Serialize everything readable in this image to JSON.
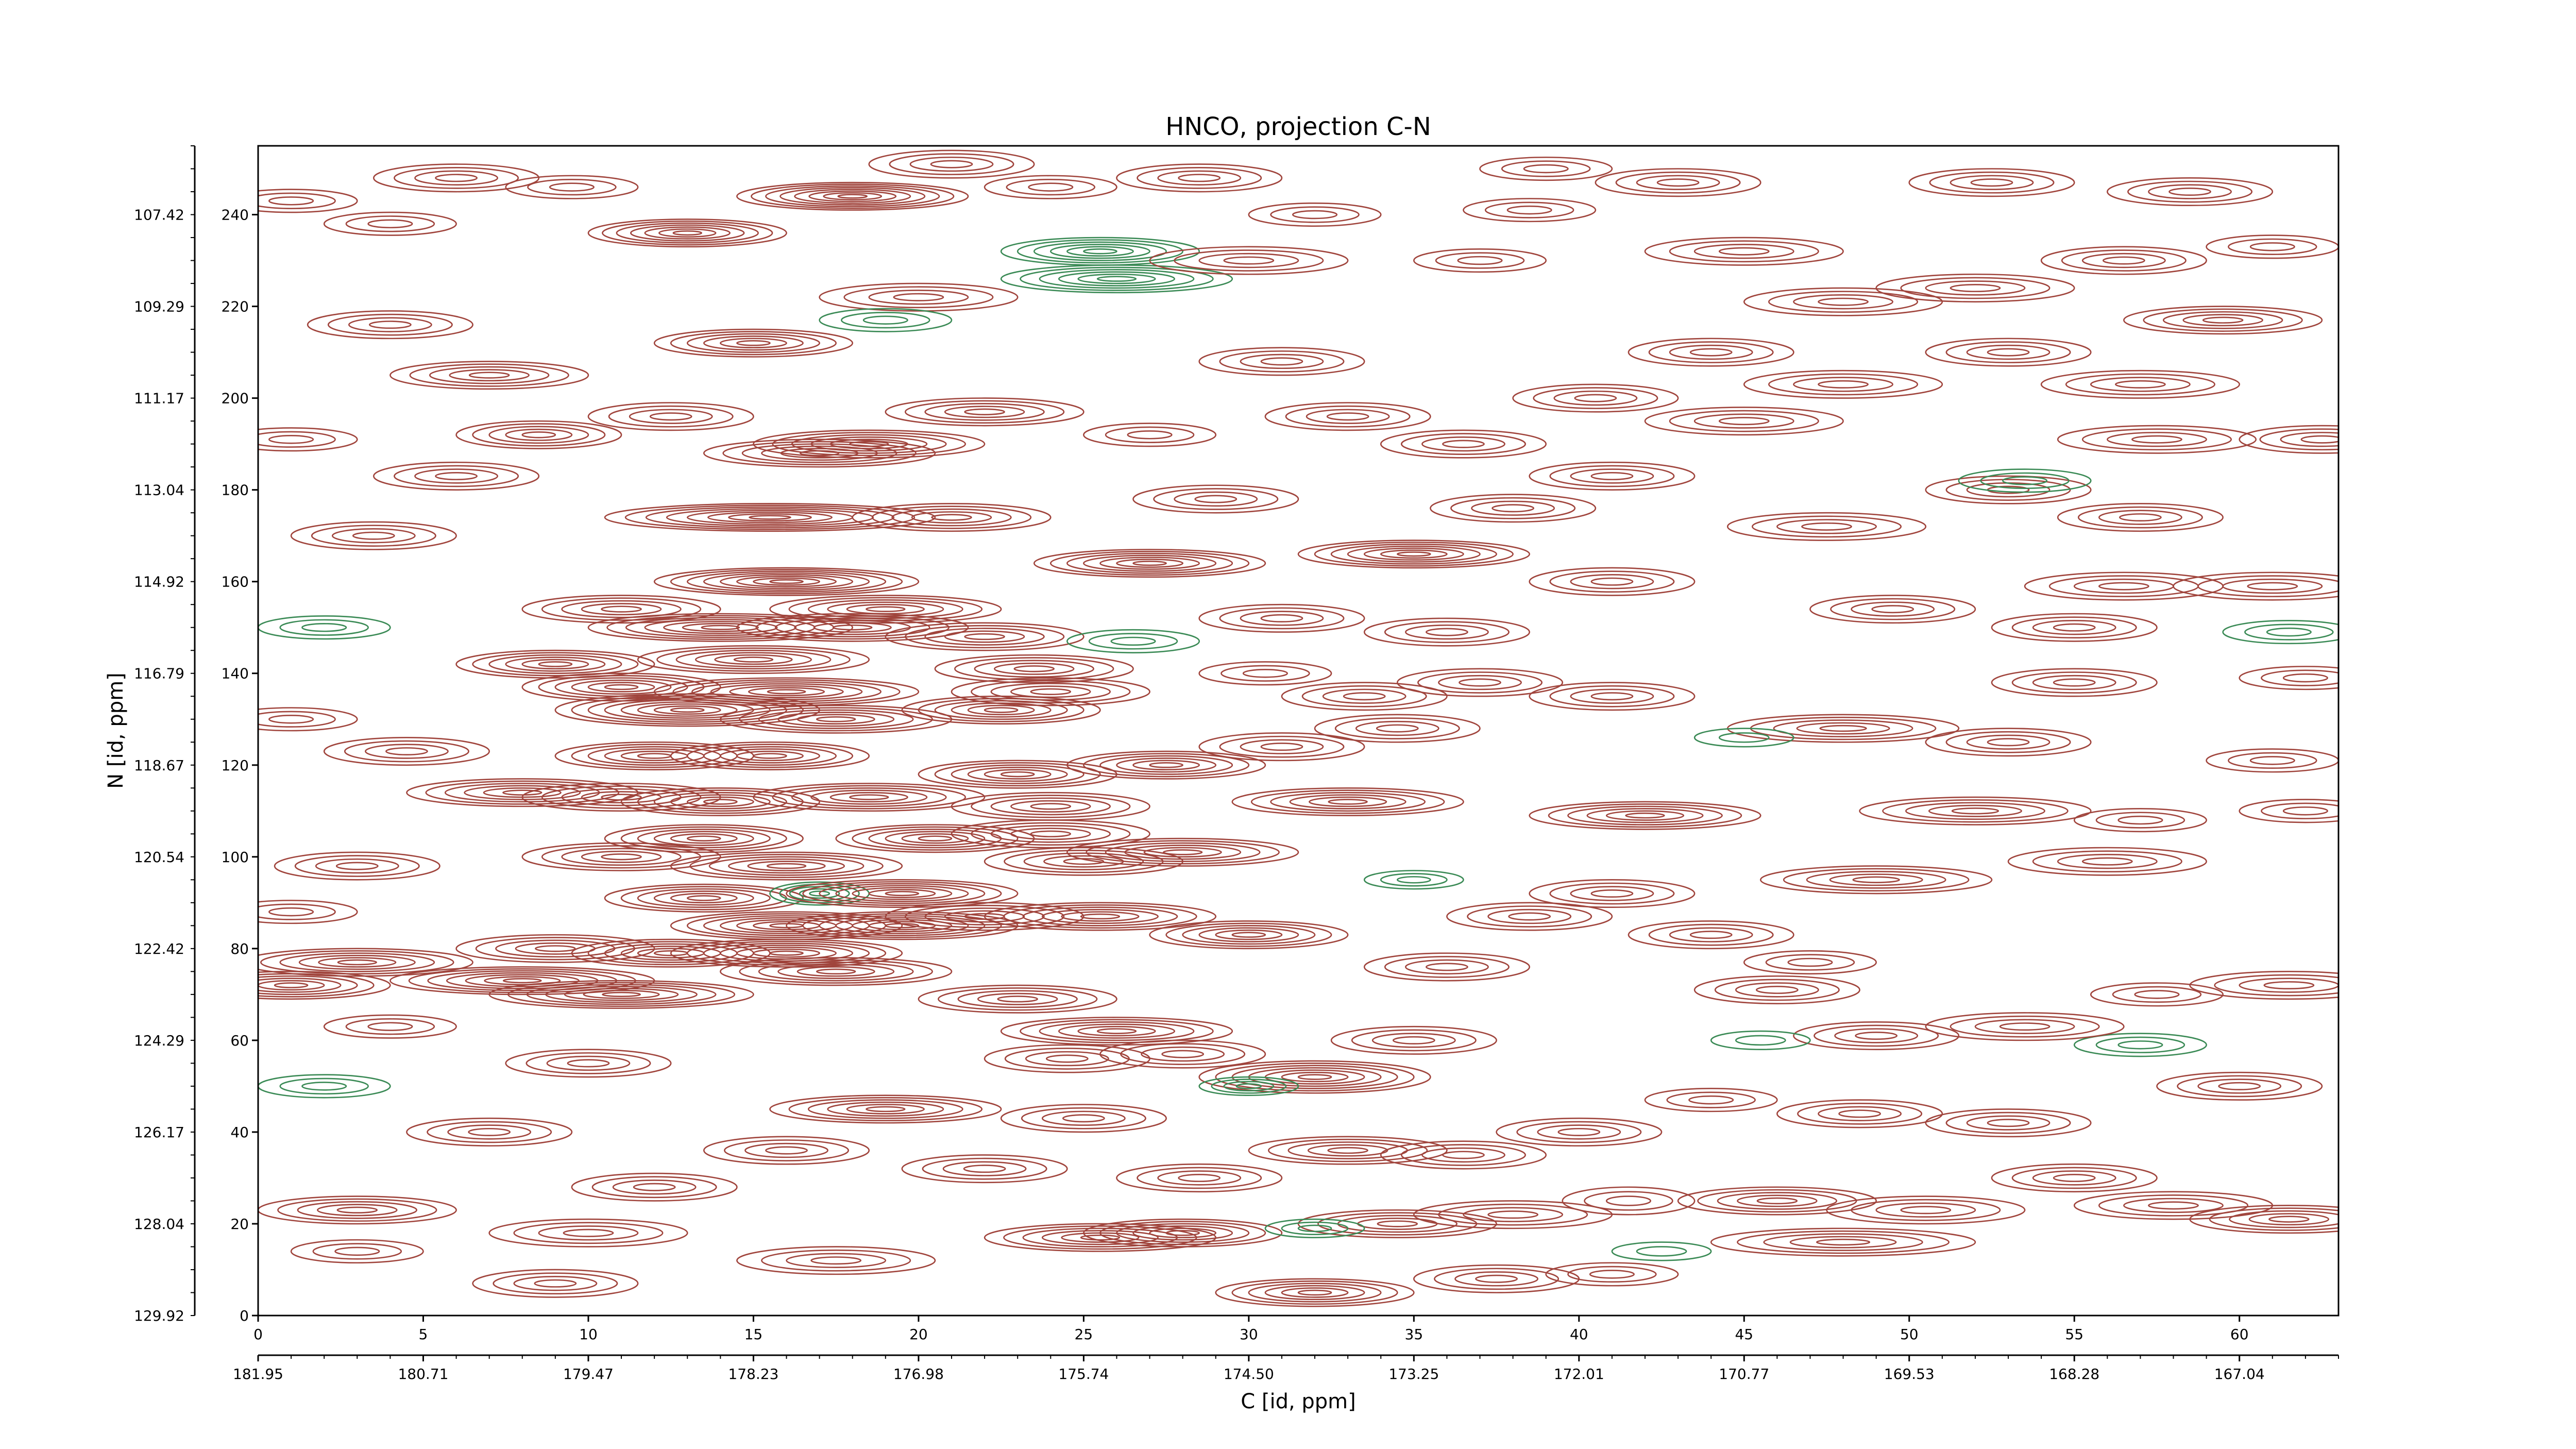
{
  "chart_data": {
    "type": "contour",
    "title": "HNCO, projection C-N",
    "xlabel": "C [id, ppm]",
    "ylabel": "N [id, ppm]",
    "x_index_ticks": [
      "0",
      "5",
      "10",
      "15",
      "20",
      "25",
      "30",
      "35",
      "40",
      "45",
      "50",
      "55",
      "60"
    ],
    "x_ppm_ticks": [
      "181.95",
      "180.71",
      "179.47",
      "178.23",
      "176.98",
      "175.74",
      "174.50",
      "173.25",
      "172.01",
      "170.77",
      "169.53",
      "168.28",
      "167.04"
    ],
    "y_index_ticks": [
      "0",
      "20",
      "40",
      "60",
      "80",
      "100",
      "120",
      "140",
      "160",
      "180",
      "200",
      "220",
      "240"
    ],
    "y_ppm_ticks": [
      "129.92",
      "128.04",
      "126.17",
      "124.29",
      "122.42",
      "120.54",
      "118.67",
      "116.79",
      "114.92",
      "113.04",
      "111.17",
      "109.29",
      "107.42"
    ],
    "x_index_range": [
      0,
      63
    ],
    "y_index_range": [
      0,
      255
    ],
    "colors": {
      "positive": "#a0443c",
      "negative": "#3a8a55"
    },
    "peaks": [
      [
        18,
        244,
        3.5,
        3,
        8,
        1
      ],
      [
        13,
        236,
        3,
        3,
        7,
        1
      ],
      [
        25.5,
        232,
        3,
        3,
        6,
        -1
      ],
      [
        26,
        226,
        3.5,
        3,
        6,
        -1
      ],
      [
        15,
        212,
        3,
        3,
        6,
        1
      ],
      [
        7,
        205,
        3,
        3,
        5,
        1
      ],
      [
        12.5,
        196,
        2.5,
        3,
        4,
        1
      ],
      [
        8.5,
        192,
        2.5,
        3,
        5,
        1
      ],
      [
        17,
        188,
        3.5,
        3,
        6,
        1
      ],
      [
        18.5,
        190,
        3.5,
        3,
        6,
        1
      ],
      [
        22,
        197,
        3,
        3,
        5,
        1
      ],
      [
        15.5,
        174,
        5,
        3,
        8,
        1
      ],
      [
        21,
        174,
        3,
        3,
        5,
        1
      ],
      [
        27,
        164,
        3.5,
        3,
        7,
        1
      ],
      [
        35,
        166,
        3.5,
        3,
        7,
        1
      ],
      [
        16,
        160,
        4,
        3,
        8,
        1
      ],
      [
        11,
        154,
        3,
        3,
        5,
        1
      ],
      [
        19,
        154,
        3.5,
        3,
        6,
        1
      ],
      [
        14,
        150,
        4,
        3,
        7,
        1
      ],
      [
        18,
        150,
        3.5,
        3,
        6,
        1
      ],
      [
        22,
        148,
        3,
        3,
        5,
        1
      ],
      [
        9,
        142,
        3,
        3,
        6,
        1
      ],
      [
        15,
        143,
        3.5,
        3,
        6,
        1
      ],
      [
        23.5,
        141,
        3,
        3,
        5,
        1
      ],
      [
        11,
        137,
        3,
        3,
        6,
        1
      ],
      [
        16,
        136,
        4,
        3,
        7,
        1
      ],
      [
        13,
        132,
        4,
        3.5,
        8,
        1
      ],
      [
        17.5,
        130,
        3.5,
        3,
        6,
        1
      ],
      [
        22.5,
        132,
        3,
        3,
        6,
        1
      ],
      [
        24,
        136,
        3,
        3,
        5,
        1
      ],
      [
        12,
        122,
        3,
        3,
        6,
        1
      ],
      [
        15.5,
        122,
        3,
        3,
        6,
        1
      ],
      [
        8,
        114,
        3.5,
        3,
        6,
        1
      ],
      [
        11,
        113,
        3,
        3,
        5,
        1
      ],
      [
        14,
        112,
        3,
        3,
        6,
        1
      ],
      [
        18.5,
        113,
        3.5,
        3,
        6,
        1
      ],
      [
        23,
        118,
        3,
        3,
        6,
        1
      ],
      [
        27.5,
        120,
        3,
        3,
        6,
        1
      ],
      [
        24,
        111,
        3,
        3,
        5,
        1
      ],
      [
        33,
        112,
        3.5,
        3,
        6,
        1
      ],
      [
        42,
        109,
        3.5,
        3,
        6,
        1
      ],
      [
        11,
        100,
        3,
        3,
        5,
        1
      ],
      [
        13.5,
        104,
        3,
        3,
        6,
        1
      ],
      [
        20.5,
        104,
        3,
        3,
        6,
        1
      ],
      [
        24,
        105,
        3,
        3,
        5,
        1
      ],
      [
        28,
        101,
        3.5,
        3,
        6,
        1
      ],
      [
        16,
        98,
        3.5,
        3,
        6,
        1
      ],
      [
        25,
        99,
        3,
        3,
        5,
        1
      ],
      [
        13.5,
        91,
        3,
        3,
        6,
        1
      ],
      [
        17,
        92,
        1.5,
        2.5,
        5,
        -1
      ],
      [
        19.5,
        92,
        3.5,
        3,
        7,
        1
      ],
      [
        19.5,
        85,
        3.5,
        3,
        7,
        1
      ],
      [
        16,
        85,
        3.5,
        3,
        7,
        1
      ],
      [
        22,
        87,
        3,
        3,
        5,
        1
      ],
      [
        25.5,
        87,
        3.5,
        3,
        6,
        1
      ],
      [
        30,
        83,
        3,
        3,
        6,
        1
      ],
      [
        9,
        80,
        3,
        3,
        5,
        1
      ],
      [
        12.5,
        79,
        3,
        3,
        6,
        1
      ],
      [
        16,
        79,
        3.5,
        3,
        7,
        1
      ],
      [
        3,
        77,
        3.5,
        3,
        6,
        1
      ],
      [
        1,
        72,
        3,
        3,
        6,
        1
      ],
      [
        8,
        73,
        4,
        3,
        7,
        1
      ],
      [
        11,
        70,
        4,
        3,
        7,
        1
      ],
      [
        17.5,
        75,
        3.5,
        3,
        6,
        1
      ],
      [
        23,
        69,
        3,
        3,
        5,
        1
      ],
      [
        26,
        62,
        3.5,
        3,
        6,
        1
      ],
      [
        32,
        52,
        3.5,
        3.5,
        7,
        1
      ],
      [
        30,
        50,
        1.5,
        2,
        4,
        -1
      ],
      [
        19,
        45,
        3.5,
        3,
        6,
        1
      ],
      [
        25.5,
        17,
        3.5,
        3,
        6,
        1
      ],
      [
        28,
        18,
        3,
        3,
        6,
        1
      ],
      [
        32,
        5,
        3,
        3,
        6,
        1
      ],
      [
        3,
        23,
        3,
        3,
        5,
        1
      ],
      [
        12,
        28,
        2.5,
        3,
        4,
        1
      ],
      [
        3,
        14,
        2,
        2.5,
        3,
        1
      ],
      [
        41.5,
        25,
        2,
        3,
        3,
        1
      ],
      [
        38,
        22,
        3,
        3,
        4,
        1
      ],
      [
        48,
        16,
        4,
        3,
        5,
        1
      ],
      [
        46,
        25,
        3,
        3,
        5,
        1
      ],
      [
        50.5,
        23,
        3,
        3,
        4,
        1
      ],
      [
        58,
        24,
        3,
        3,
        4,
        1
      ],
      [
        61.5,
        21,
        3,
        3,
        5,
        1
      ],
      [
        55,
        30,
        2.5,
        3,
        4,
        1
      ],
      [
        60,
        50,
        2.5,
        3,
        4,
        1
      ],
      [
        53,
        42,
        2.5,
        3,
        4,
        1
      ],
      [
        57,
        59,
        2,
        2.5,
        3,
        -1
      ],
      [
        53.5,
        63,
        3,
        3,
        4,
        1
      ],
      [
        61.5,
        72,
        3,
        3,
        4,
        1
      ],
      [
        57.5,
        70,
        2,
        2.5,
        3,
        1
      ],
      [
        47,
        77,
        2,
        2.5,
        3,
        1
      ],
      [
        49,
        95,
        3.5,
        3,
        5,
        1
      ],
      [
        41,
        92,
        2.5,
        3,
        4,
        1
      ],
      [
        56,
        99,
        3,
        3,
        4,
        1
      ],
      [
        57,
        108,
        2,
        2.5,
        3,
        1
      ],
      [
        52,
        110,
        3.5,
        3,
        5,
        1
      ],
      [
        62,
        110,
        2,
        2.5,
        3,
        1
      ],
      [
        48,
        128,
        3.5,
        3,
        5,
        1
      ],
      [
        53,
        125,
        2.5,
        3,
        4,
        1
      ],
      [
        61,
        121,
        2,
        2.5,
        3,
        1
      ],
      [
        45,
        126,
        1.5,
        2,
        2,
        -1
      ],
      [
        41,
        135,
        2.5,
        3,
        4,
        1
      ],
      [
        55,
        138,
        2.5,
        3,
        4,
        1
      ],
      [
        62,
        139,
        2,
        2.5,
        3,
        1
      ],
      [
        61.5,
        149,
        2,
        2.5,
        3,
        -1
      ],
      [
        55,
        150,
        2.5,
        3,
        4,
        1
      ],
      [
        49.5,
        154,
        2.5,
        3,
        4,
        1
      ],
      [
        56.5,
        159,
        3,
        3,
        4,
        1
      ],
      [
        61,
        159,
        3,
        3,
        4,
        1
      ],
      [
        47.5,
        172,
        3,
        3,
        4,
        1
      ],
      [
        57,
        174,
        2.5,
        3,
        4,
        1
      ],
      [
        53,
        180,
        2.5,
        3,
        4,
        1
      ],
      [
        53.5,
        182,
        2,
        2.5,
        3,
        -1
      ],
      [
        62.5,
        191,
        2.5,
        3,
        4,
        1
      ],
      [
        57.5,
        191,
        3,
        3,
        4,
        1
      ],
      [
        45,
        195,
        3,
        3,
        4,
        1
      ],
      [
        40.5,
        200,
        2.5,
        3,
        4,
        1
      ],
      [
        48,
        203,
        3,
        3,
        4,
        1
      ],
      [
        57,
        203,
        3,
        3,
        4,
        1
      ],
      [
        53,
        210,
        2.5,
        3,
        4,
        1
      ],
      [
        59.5,
        217,
        3,
        3,
        5,
        1
      ],
      [
        52,
        224,
        3,
        3,
        4,
        1
      ],
      [
        56.5,
        230,
        2.5,
        3,
        4,
        1
      ],
      [
        61,
        233,
        2,
        2.5,
        3,
        1
      ],
      [
        52.5,
        247,
        2.5,
        3,
        4,
        1
      ],
      [
        58.5,
        245,
        2.5,
        3,
        4,
        1
      ],
      [
        43,
        247,
        2.5,
        3,
        4,
        1
      ],
      [
        39,
        250,
        2,
        2.5,
        3,
        1
      ],
      [
        38.5,
        241,
        2,
        2.5,
        3,
        1
      ],
      [
        45,
        232,
        3,
        3,
        4,
        1
      ],
      [
        48,
        221,
        3,
        3,
        4,
        1
      ],
      [
        44,
        210,
        2.5,
        3,
        4,
        1
      ],
      [
        36.5,
        190,
        2.5,
        3,
        4,
        1
      ],
      [
        41,
        183,
        2.5,
        3,
        4,
        1
      ],
      [
        38,
        176,
        2.5,
        3,
        4,
        1
      ],
      [
        41,
        160,
        2.5,
        3,
        4,
        1
      ],
      [
        36,
        149,
        2.5,
        3,
        4,
        1
      ],
      [
        37,
        138,
        2.5,
        3,
        4,
        1
      ],
      [
        34.5,
        128,
        2.5,
        3,
        4,
        1
      ],
      [
        36,
        76,
        2.5,
        3,
        4,
        1
      ],
      [
        38.5,
        87,
        2.5,
        3,
        4,
        1
      ],
      [
        35,
        60,
        2.5,
        3,
        4,
        1
      ],
      [
        36.5,
        35,
        2.5,
        3,
        4,
        1
      ],
      [
        34.5,
        20,
        3,
        3,
        5,
        1
      ],
      [
        32,
        19,
        1.5,
        2,
        3,
        -1
      ],
      [
        37.5,
        8,
        2.5,
        3,
        4,
        1
      ],
      [
        41,
        9,
        2,
        2.5,
        3,
        1
      ],
      [
        42.5,
        14,
        1.5,
        2,
        2,
        -1
      ],
      [
        10,
        18,
        3,
        3,
        4,
        1
      ],
      [
        9,
        7,
        2.5,
        3,
        4,
        1
      ],
      [
        17.5,
        12,
        3,
        3,
        4,
        1
      ],
      [
        22,
        32,
        2.5,
        3,
        4,
        1
      ],
      [
        16,
        36,
        2.5,
        3,
        4,
        1
      ],
      [
        7,
        40,
        2.5,
        3,
        4,
        1
      ],
      [
        2,
        50,
        2,
        2.5,
        3,
        -1
      ],
      [
        10,
        55,
        2.5,
        3,
        4,
        1
      ],
      [
        4,
        63,
        2,
        2.5,
        3,
        1
      ],
      [
        3,
        98,
        2.5,
        3,
        4,
        1
      ],
      [
        1,
        88,
        2,
        2.5,
        3,
        1
      ],
      [
        4.5,
        123,
        2.5,
        3,
        4,
        1
      ],
      [
        1,
        130,
        2,
        2.5,
        3,
        1
      ],
      [
        2,
        150,
        2,
        2.5,
        3,
        -1
      ],
      [
        3.5,
        170,
        2.5,
        3,
        4,
        1
      ],
      [
        6,
        183,
        2.5,
        3,
        4,
        1
      ],
      [
        1,
        191,
        2,
        2.5,
        3,
        1
      ],
      [
        4,
        216,
        2.5,
        3,
        4,
        1
      ],
      [
        1,
        243,
        2,
        2.5,
        3,
        1
      ],
      [
        4,
        238,
        2,
        2.5,
        3,
        1
      ],
      [
        6,
        248,
        2.5,
        3,
        4,
        1
      ],
      [
        9.5,
        246,
        2,
        2.5,
        3,
        1
      ],
      [
        21,
        251,
        2.5,
        3,
        4,
        1
      ],
      [
        24,
        246,
        2,
        2.5,
        3,
        1
      ],
      [
        28.5,
        248,
        2.5,
        3,
        4,
        1
      ],
      [
        32,
        240,
        2,
        2.5,
        3,
        1
      ],
      [
        37,
        230,
        2,
        2.5,
        3,
        1
      ],
      [
        30,
        230,
        3,
        3,
        4,
        1
      ],
      [
        20,
        222,
        3,
        3,
        4,
        1
      ],
      [
        19,
        217,
        2,
        2.5,
        3,
        -1
      ],
      [
        31,
        208,
        2.5,
        3,
        4,
        1
      ],
      [
        27,
        192,
        2,
        2.5,
        3,
        1
      ],
      [
        33,
        196,
        2.5,
        3,
        4,
        1
      ],
      [
        29,
        178,
        2.5,
        3,
        4,
        1
      ],
      [
        31,
        152,
        2.5,
        3,
        4,
        1
      ],
      [
        26.5,
        147,
        2,
        2.5,
        3,
        -1
      ],
      [
        30.5,
        140,
        2,
        2.5,
        3,
        1
      ],
      [
        33.5,
        135,
        2.5,
        3,
        4,
        1
      ],
      [
        31,
        124,
        2.5,
        3,
        4,
        1
      ],
      [
        35,
        95,
        1.5,
        2,
        3,
        -1
      ],
      [
        44,
        83,
        2.5,
        3,
        4,
        1
      ],
      [
        46,
        71,
        2.5,
        3,
        4,
        1
      ],
      [
        49,
        61,
        2.5,
        3,
        4,
        1
      ],
      [
        45.5,
        60,
        1.5,
        2,
        2,
        -1
      ],
      [
        48.5,
        44,
        2.5,
        3,
        4,
        1
      ],
      [
        44,
        47,
        2,
        2.5,
        3,
        1
      ],
      [
        40,
        40,
        2.5,
        3,
        4,
        1
      ],
      [
        33,
        36,
        3,
        3,
        5,
        1
      ],
      [
        28.5,
        30,
        2.5,
        3,
        4,
        1
      ],
      [
        25,
        43,
        2.5,
        3,
        4,
        1
      ],
      [
        24.5,
        56,
        2.5,
        3,
        4,
        1
      ],
      [
        28,
        57,
        2.5,
        3,
        4,
        1
      ]
    ]
  }
}
